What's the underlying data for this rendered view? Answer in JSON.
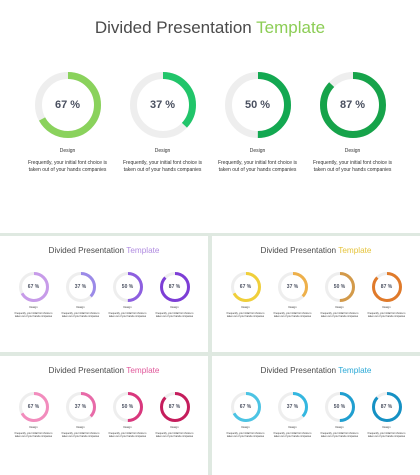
{
  "slides": [
    {
      "title_main": "Divided Presentation",
      "title_accent": "Template",
      "accent": "#8ccd55",
      "ring_colors": [
        "#8ad25c",
        "#21c56a",
        "#13a851",
        "#16a34a"
      ],
      "items": [
        {
          "pct": "67 %",
          "value": 0.67,
          "label": "Design",
          "desc": "Frequently, your initial font choice is taken out of your hands companies"
        },
        {
          "pct": "37 %",
          "value": 0.37,
          "label": "Design",
          "desc": "Frequently, your initial font choice is taken out of your hands companies"
        },
        {
          "pct": "50 %",
          "value": 0.5,
          "label": "Design",
          "desc": "Frequently, your initial font choice is taken out of your hands companies"
        },
        {
          "pct": "87 %",
          "value": 0.87,
          "label": "Design",
          "desc": "Frequently, your initial font choice is taken out of your hands companies"
        }
      ]
    },
    {
      "title_main": "Divided Presentation",
      "title_accent": "Template",
      "accent": "#b08be0",
      "ring_colors": [
        "#c79be9",
        "#9b8ae8",
        "#8d5fe0",
        "#7d3ed6"
      ],
      "items": [
        {
          "pct": "67 %",
          "value": 0.67,
          "label": "Design",
          "desc": "Frequently, your initial font choice is taken out of your hands companies"
        },
        {
          "pct": "37 %",
          "value": 0.37,
          "label": "Design",
          "desc": "Frequently, your initial font choice is taken out of your hands companies"
        },
        {
          "pct": "50 %",
          "value": 0.5,
          "label": "Design",
          "desc": "Frequently, your initial font choice is taken out of your hands companies"
        },
        {
          "pct": "87 %",
          "value": 0.87,
          "label": "Design",
          "desc": "Frequently, your initial font choice is taken out of your hands companies"
        }
      ]
    },
    {
      "title_main": "Divided Presentation",
      "title_accent": "Template",
      "accent": "#e5c33a",
      "ring_colors": [
        "#f0cf3a",
        "#eeb04a",
        "#d39a4a",
        "#e07a2a"
      ],
      "items": [
        {
          "pct": "67 %",
          "value": 0.67,
          "label": "Design",
          "desc": "Frequently, your initial font choice is taken out of your hands companies"
        },
        {
          "pct": "37 %",
          "value": 0.37,
          "label": "Design",
          "desc": "Frequently, your initial font choice is taken out of your hands companies"
        },
        {
          "pct": "50 %",
          "value": 0.5,
          "label": "Design",
          "desc": "Frequently, your initial font choice is taken out of your hands companies"
        },
        {
          "pct": "87 %",
          "value": 0.87,
          "label": "Design",
          "desc": "Frequently, your initial font choice is taken out of your hands companies"
        }
      ]
    },
    {
      "title_main": "Divided Presentation",
      "title_accent": "Template",
      "accent": "#e0579a",
      "ring_colors": [
        "#f28cbd",
        "#e86aa8",
        "#d9377d",
        "#c51d5c"
      ],
      "items": [
        {
          "pct": "67 %",
          "value": 0.67,
          "label": "Design",
          "desc": "Frequently, your initial font choice is taken out of your hands companies"
        },
        {
          "pct": "37 %",
          "value": 0.37,
          "label": "Design",
          "desc": "Frequently, your initial font choice is taken out of your hands companies"
        },
        {
          "pct": "50 %",
          "value": 0.5,
          "label": "Design",
          "desc": "Frequently, your initial font choice is taken out of your hands companies"
        },
        {
          "pct": "87 %",
          "value": 0.87,
          "label": "Design",
          "desc": "Frequently, your initial font choice is taken out of your hands companies"
        }
      ]
    },
    {
      "title_main": "Divided Presentation",
      "title_accent": "Template",
      "accent": "#29a8d6",
      "ring_colors": [
        "#4cc4e4",
        "#34b7e0",
        "#209fd0",
        "#1591c4"
      ],
      "items": [
        {
          "pct": "67 %",
          "value": 0.67,
          "label": "Design",
          "desc": "Frequently, your initial font choice is taken out of your hands companies"
        },
        {
          "pct": "37 %",
          "value": 0.37,
          "label": "Design",
          "desc": "Frequently, your initial font choice is taken out of your hands companies"
        },
        {
          "pct": "50 %",
          "value": 0.5,
          "label": "Design",
          "desc": "Frequently, your initial font choice is taken out of your hands companies"
        },
        {
          "pct": "87 %",
          "value": 0.87,
          "label": "Design",
          "desc": "Frequently, your initial font choice is taken out of your hands companies"
        }
      ]
    }
  ]
}
